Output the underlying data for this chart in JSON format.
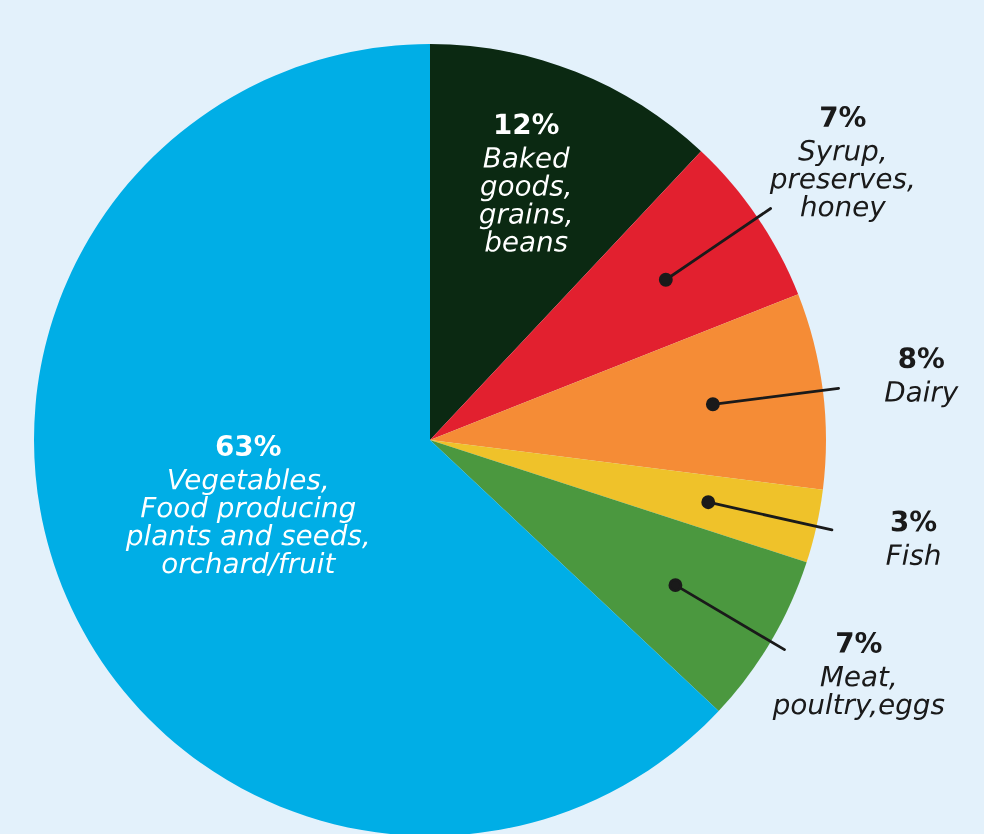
{
  "chart_data": {
    "type": "pie",
    "categories": [
      "Baked\ngoods,\ngrains,\nbeans",
      "Syrup,\npreserves,\nhoney",
      "Dairy",
      "Fish",
      "Meat,\npoultry,eggs",
      "Vegetables,\nFood producing\nplants and seeds,\norchard/fruit"
    ],
    "values": [
      12,
      7,
      8,
      3,
      7,
      63
    ],
    "value_labels": [
      "12%",
      "7%",
      "8%",
      "3%",
      "7%",
      "63%"
    ],
    "colors": [
      "#0b2912",
      "#e2202f",
      "#f58c36",
      "#efc22a",
      "#4b983f",
      "#00aee6"
    ]
  }
}
